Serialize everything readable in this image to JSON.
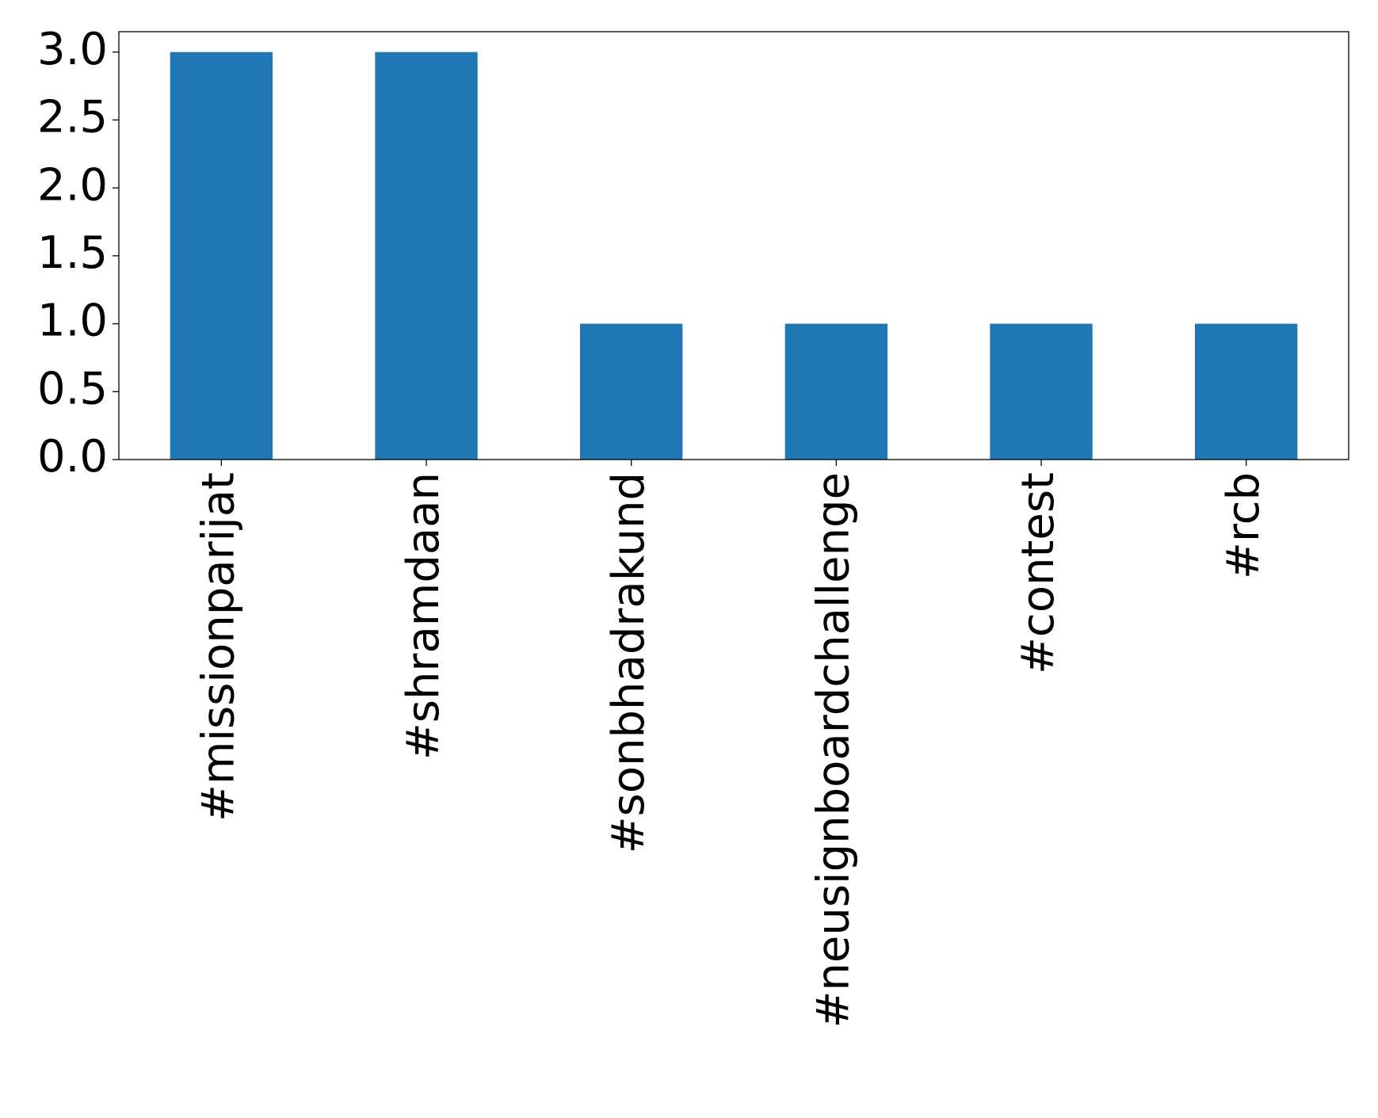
{
  "chart_data": {
    "type": "bar",
    "title": "",
    "xlabel": "",
    "ylabel": "",
    "categories": [
      "#missionparijat",
      "#shramdaan",
      "#sonbhadrakund",
      "#neusignboardchallenge",
      "#contest",
      "#rcb"
    ],
    "values": [
      3,
      3,
      1,
      1,
      1,
      1
    ],
    "ylim": [
      0,
      3.15
    ],
    "yticks": [
      0.0,
      0.5,
      1.0,
      1.5,
      2.0,
      2.5,
      3.0
    ],
    "ytick_labels": [
      "0.0",
      "0.5",
      "1.0",
      "1.5",
      "2.0",
      "2.5",
      "3.0"
    ],
    "bar_color": "#1f77b4",
    "grid": false,
    "legend": "none"
  }
}
